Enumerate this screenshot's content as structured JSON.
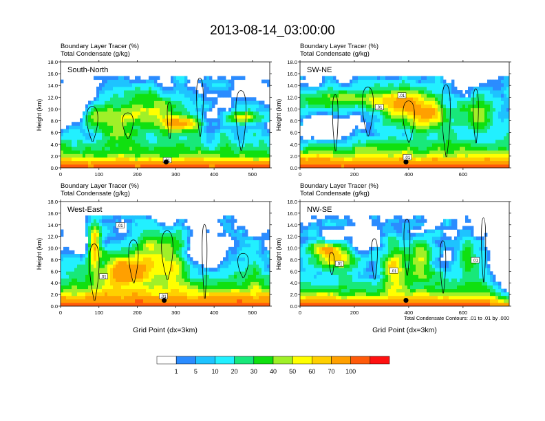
{
  "title": "2013-08-14_03:00:00",
  "chart_data": [
    {
      "type": "heatmap",
      "label": "South-North",
      "line1": "Boundary Layer Tracer   (%)",
      "line2": "Total Condensate   (g/kg)",
      "ylabel": "Height (km)",
      "xlabel": "",
      "xlim": [
        0,
        545
      ],
      "ylim": [
        0,
        18
      ],
      "xticks": [
        0,
        100,
        200,
        300,
        400,
        500
      ],
      "yticks": [
        "0.0",
        "2.0",
        "4.0",
        "6.0",
        "8.0",
        "10.0",
        "12.0",
        "14.0",
        "16.0",
        "18.0"
      ],
      "contour_labels": [
        {
          "text": ".01",
          "x": 278,
          "y": 1.2
        }
      ],
      "marker": {
        "x": 275,
        "y": 1.0
      }
    },
    {
      "type": "heatmap",
      "label": "SW-NE",
      "line1": "Boundary Layer Tracer   (%)",
      "line2": "Total Condensate   (g/kg)",
      "ylabel": "Height (km)",
      "xlabel": "",
      "xlim": [
        0,
        770
      ],
      "ylim": [
        0,
        18
      ],
      "xticks": [
        0,
        200,
        400,
        600
      ],
      "yticks": [
        "0.0",
        "2.0",
        "4.0",
        "6.0",
        "8.0",
        "10.0",
        "12.0",
        "14.0",
        "16.0",
        "18.0"
      ],
      "contour_labels": [
        {
          "text": ".01",
          "x": 292,
          "y": 10.2
        },
        {
          "text": ".01",
          "x": 375,
          "y": 12.2
        },
        {
          "text": ".01",
          "x": 395,
          "y": 1.7
        }
      ],
      "marker": {
        "x": 390,
        "y": 1.0
      }
    },
    {
      "type": "heatmap",
      "label": "West-East",
      "line1": "Boundary Layer Tracer   (%)",
      "line2": "Total Condensate   (g/kg)",
      "ylabel": "Height (km)",
      "xlabel": "Grid Point (dx=3km)",
      "xlim": [
        0,
        545
      ],
      "ylim": [
        0,
        18
      ],
      "xticks": [
        0,
        100,
        200,
        300,
        400,
        500
      ],
      "yticks": [
        "0.0",
        "2.0",
        "4.0",
        "6.0",
        "8.0",
        "10.0",
        "12.0",
        "14.0",
        "16.0",
        "18.0"
      ],
      "contour_labels": [
        {
          "text": ".01",
          "x": 155,
          "y": 13.8
        },
        {
          "text": ".01",
          "x": 112,
          "y": 5.0
        },
        {
          "text": ".01",
          "x": 268,
          "y": 1.6
        }
      ],
      "marker": {
        "x": 270,
        "y": 1.0
      }
    },
    {
      "type": "heatmap",
      "label": "NW-SE",
      "line1": "Boundary Layer Tracer   (%)",
      "line2": "Total Condensate   (g/kg)",
      "ylabel": "Height (km)",
      "xlabel": "Grid Point (dx=3km)",
      "xlim": [
        0,
        770
      ],
      "ylim": [
        0,
        18
      ],
      "xticks": [
        0,
        200,
        400,
        600
      ],
      "yticks": [
        "0.0",
        "2.0",
        "4.0",
        "6.0",
        "8.0",
        "10.0",
        "12.0",
        "14.0",
        "16.0",
        "18.0"
      ],
      "contour_labels": [
        {
          "text": ".01",
          "x": 145,
          "y": 7.2
        },
        {
          "text": ".01",
          "x": 345,
          "y": 6.0
        },
        {
          "text": ".01",
          "x": 645,
          "y": 7.8
        }
      ],
      "marker": {
        "x": 390,
        "y": 1.0
      },
      "footnote": "Total Condensate Contours: .01 to .01 by .000"
    }
  ],
  "colorbar": {
    "labels": [
      "1",
      "5",
      "10",
      "20",
      "30",
      "40",
      "50",
      "60",
      "70",
      "100"
    ],
    "colors": [
      "#ffffff",
      "#2b8cff",
      "#1ec3ff",
      "#22f0ff",
      "#18e87a",
      "#10e010",
      "#a0f028",
      "#ffff00",
      "#ffd000",
      "#ffa000",
      "#ff5a0a",
      "#ff1010"
    ]
  }
}
